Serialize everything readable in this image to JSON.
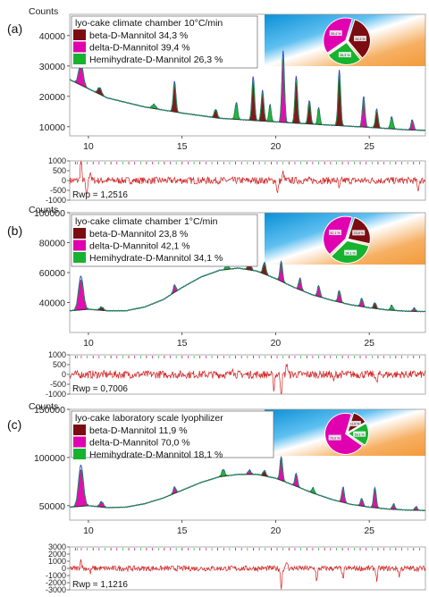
{
  "chart_data": [
    {
      "type": "line",
      "panel_label": "(a)",
      "ylabel": "Counts",
      "title": "lyo-cake climate chamber 10°C/min",
      "ylim": [
        7000,
        47000
      ],
      "xlim": [
        9,
        28
      ],
      "yticks": [
        10000,
        20000,
        30000,
        40000
      ],
      "ytick_labels": [
        "10000",
        "20000",
        "30000",
        "40000"
      ],
      "xticks": [
        10,
        15,
        20,
        25
      ],
      "xtick_labels": [
        "10",
        "15",
        "20",
        "25"
      ],
      "background": [
        [
          9,
          25500
        ],
        [
          11,
          19500
        ],
        [
          13,
          16500
        ],
        [
          15,
          14500
        ],
        [
          17,
          12800
        ],
        [
          19,
          12000
        ],
        [
          21,
          11200
        ],
        [
          23,
          10500
        ],
        [
          25,
          9800
        ],
        [
          27,
          9000
        ],
        [
          28,
          8800
        ]
      ],
      "peaks": [
        [
          9.6,
          6500,
          0.12,
          "delta"
        ],
        [
          10.6,
          2000,
          0.1,
          "beta"
        ],
        [
          13.5,
          1200,
          0.1,
          "hemi"
        ],
        [
          14.6,
          9000,
          0.07,
          "beta"
        ],
        [
          16.8,
          2500,
          0.08,
          "beta"
        ],
        [
          17.9,
          5000,
          0.07,
          "hemi"
        ],
        [
          18.8,
          13000,
          0.07,
          "beta"
        ],
        [
          19.3,
          9000,
          0.07,
          "beta"
        ],
        [
          19.7,
          5000,
          0.06,
          "hemi"
        ],
        [
          20.4,
          21000,
          0.07,
          "delta"
        ],
        [
          21.1,
          14000,
          0.07,
          "beta"
        ],
        [
          21.8,
          7000,
          0.07,
          "beta"
        ],
        [
          22.3,
          5000,
          0.06,
          "hemi"
        ],
        [
          23.4,
          16500,
          0.07,
          "beta"
        ],
        [
          24.7,
          9000,
          0.07,
          "delta"
        ],
        [
          25.4,
          5500,
          0.07,
          "beta"
        ],
        [
          26.2,
          3500,
          0.07,
          "hemi"
        ],
        [
          27.3,
          3000,
          0.07,
          "delta"
        ]
      ],
      "series": [
        {
          "name": "beta-D-Mannitol 34,3 %",
          "phase": "beta",
          "fraction": 34.3,
          "color": "#7b0d12"
        },
        {
          "name": "delta-D-Mannitol 39,4 %",
          "phase": "delta",
          "fraction": 39.4,
          "color": "#e000b0"
        },
        {
          "name": "Hemihydrate-D-Mannitol 26,3 %",
          "phase": "hemi",
          "fraction": 26.3,
          "color": "#17b230"
        }
      ],
      "pie_labels": [
        "34,3 %",
        "39,4 %",
        "26,3 %"
      ],
      "residual": {
        "ylim": [
          -1000,
          1000
        ],
        "yticks": [
          1000,
          500,
          0,
          -500,
          -1000
        ],
        "ytick_labels": [
          "1000",
          "500",
          "0",
          "-500",
          "-1000"
        ],
        "rwp_label": "Rwp = 1,2516",
        "spikes": [
          [
            9.6,
            1000
          ],
          [
            9.9,
            -900
          ],
          [
            10.1,
            500
          ],
          [
            20.1,
            -700
          ],
          [
            20.4,
            400
          ],
          [
            23.4,
            -450
          ],
          [
            27.6,
            -500
          ]
        ],
        "noise": 180
      }
    },
    {
      "type": "line",
      "panel_label": "(b)",
      "ylabel": "Counts",
      "title": "lyo-cake climate chamber 1°C/min",
      "ylim": [
        20000,
        100000
      ],
      "xlim": [
        9,
        28
      ],
      "yticks": [
        40000,
        60000,
        80000,
        100000
      ],
      "ytick_labels": [
        "40000",
        "60000",
        "80000",
        "100000"
      ],
      "xticks": [
        10,
        15,
        20,
        25
      ],
      "xtick_labels": [
        "10",
        "15",
        "20",
        "25"
      ],
      "background": [
        [
          9,
          34500
        ],
        [
          10,
          35500
        ],
        [
          11,
          34500
        ],
        [
          12,
          34500
        ],
        [
          13,
          37000
        ],
        [
          14,
          42000
        ],
        [
          15,
          50000
        ],
        [
          16,
          57000
        ],
        [
          17,
          61500
        ],
        [
          18,
          63000
        ],
        [
          19,
          61000
        ],
        [
          20,
          56000
        ],
        [
          21,
          50000
        ],
        [
          22,
          45000
        ],
        [
          23,
          41500
        ],
        [
          24,
          38500
        ],
        [
          25,
          36500
        ],
        [
          26,
          35000
        ],
        [
          27,
          34200
        ],
        [
          28,
          34000
        ]
      ],
      "peaks": [
        [
          9.6,
          20000,
          0.13,
          "delta"
        ],
        [
          10.7,
          2000,
          0.1,
          "beta"
        ],
        [
          14.6,
          4500,
          0.07,
          "delta"
        ],
        [
          17.4,
          3000,
          0.08,
          "hemi"
        ],
        [
          18.6,
          6000,
          0.08,
          "beta"
        ],
        [
          19.4,
          7000,
          0.08,
          "beta"
        ],
        [
          20.3,
          12000,
          0.07,
          "delta"
        ],
        [
          21.3,
          7000,
          0.07,
          "delta"
        ],
        [
          22.3,
          6500,
          0.07,
          "delta"
        ],
        [
          23.4,
          7000,
          0.07,
          "delta"
        ],
        [
          24.6,
          5000,
          0.07,
          "delta"
        ],
        [
          25.3,
          3500,
          0.07,
          "beta"
        ],
        [
          26.2,
          3000,
          0.07,
          "hemi"
        ],
        [
          27.4,
          2000,
          0.07,
          "delta"
        ]
      ],
      "series": [
        {
          "name": "beta-D-Mannitol 23,8 %",
          "phase": "beta",
          "fraction": 23.8,
          "color": "#7b0d12"
        },
        {
          "name": "delta-D-Mannitol 42,1 %",
          "phase": "delta",
          "fraction": 42.1,
          "color": "#e000b0"
        },
        {
          "name": "Hemihydrate-D-Mannitol 34,1 %",
          "phase": "hemi",
          "fraction": 34.1,
          "color": "#17b230"
        }
      ],
      "pie_labels": [
        "23,8 %",
        "42,1 %",
        "34,1 %"
      ],
      "residual": {
        "ylim": [
          -1000,
          1000
        ],
        "yticks": [
          1000,
          500,
          0,
          -500,
          -1000
        ],
        "ytick_labels": [
          "1000",
          "500",
          "0",
          "-500",
          "-1000"
        ],
        "rwp_label": "Rwp = 0,7006",
        "spikes": [
          [
            17.7,
            450
          ],
          [
            19.9,
            -700
          ],
          [
            20.3,
            -950
          ],
          [
            20.6,
            600
          ],
          [
            23.1,
            -400
          ],
          [
            25.4,
            -500
          ]
        ],
        "noise": 200
      }
    },
    {
      "type": "line",
      "panel_label": "(c)",
      "ylabel": "Counts",
      "title": "lyo-cake laboratory scale lyophilizer",
      "ylim": [
        35000,
        150000
      ],
      "xlim": [
        9,
        28
      ],
      "yticks": [
        50000,
        100000,
        150000
      ],
      "ytick_labels": [
        "50000",
        "100000",
        "150000"
      ],
      "xticks": [
        10,
        15,
        20,
        25
      ],
      "xtick_labels": [
        "10",
        "15",
        "20",
        "25"
      ],
      "background": [
        [
          9,
          48500
        ],
        [
          10,
          50000
        ],
        [
          11,
          48000
        ],
        [
          12,
          48500
        ],
        [
          13,
          52000
        ],
        [
          14,
          58000
        ],
        [
          15,
          66000
        ],
        [
          16,
          74000
        ],
        [
          17,
          80000
        ],
        [
          18,
          82500
        ],
        [
          19,
          82500
        ],
        [
          20,
          78500
        ],
        [
          21,
          71000
        ],
        [
          22,
          63000
        ],
        [
          23,
          56500
        ],
        [
          24,
          51500
        ],
        [
          25,
          48500
        ],
        [
          26,
          46500
        ],
        [
          27,
          45500
        ],
        [
          28,
          45000
        ]
      ],
      "peaks": [
        [
          9.6,
          38000,
          0.13,
          "delta"
        ],
        [
          10.7,
          5000,
          0.1,
          "delta"
        ],
        [
          14.6,
          6000,
          0.07,
          "delta"
        ],
        [
          17.2,
          6500,
          0.08,
          "hemi"
        ],
        [
          18.6,
          4000,
          0.08,
          "delta"
        ],
        [
          19.4,
          5000,
          0.08,
          "beta"
        ],
        [
          20.3,
          22000,
          0.07,
          "delta"
        ],
        [
          21.1,
          12000,
          0.07,
          "delta"
        ],
        [
          22.0,
          5000,
          0.07,
          "hemi"
        ],
        [
          23.6,
          14000,
          0.07,
          "delta"
        ],
        [
          24.6,
          7000,
          0.07,
          "delta"
        ],
        [
          25.3,
          19000,
          0.07,
          "delta"
        ],
        [
          26.3,
          5000,
          0.07,
          "delta"
        ],
        [
          27.5,
          3500,
          0.07,
          "delta"
        ]
      ],
      "series": [
        {
          "name": "beta-D-Mannitol 11,9 %",
          "phase": "beta",
          "fraction": 11.9,
          "color": "#7b0d12"
        },
        {
          "name": "delta-D-Mannitol 70,0 %",
          "phase": "delta",
          "fraction": 70.0,
          "color": "#e000b0"
        },
        {
          "name": "Hemihydrate-D-Mannitol 18,1 %",
          "phase": "hemi",
          "fraction": 18.1,
          "color": "#17b230"
        }
      ],
      "pie_labels": [
        "11,9 %",
        "70,0 %",
        "18,1 %"
      ],
      "residual": {
        "ylim": [
          -3000,
          3000
        ],
        "yticks": [
          3000,
          2000,
          1000,
          0,
          -1000,
          -2000,
          -3000
        ],
        "ytick_labels": [
          "3000",
          "2000",
          "1000",
          "0",
          "-1000",
          "-2000",
          "-3000"
        ],
        "rwp_label": "Rwp = 1,1216",
        "spikes": [
          [
            9.6,
            1200
          ],
          [
            10.1,
            -600
          ],
          [
            20.3,
            -2600
          ],
          [
            20.6,
            900
          ],
          [
            22.2,
            -1800
          ],
          [
            23.6,
            -1500
          ],
          [
            25.4,
            -1600
          ],
          [
            26.6,
            -1000
          ]
        ],
        "noise": 380
      }
    }
  ]
}
